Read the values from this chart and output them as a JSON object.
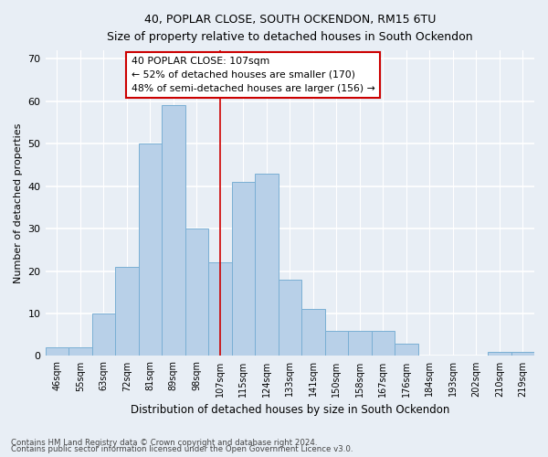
{
  "title1": "40, POPLAR CLOSE, SOUTH OCKENDON, RM15 6TU",
  "title2": "Size of property relative to detached houses in South Ockendon",
  "xlabel": "Distribution of detached houses by size in South Ockendon",
  "ylabel": "Number of detached properties",
  "categories": [
    "46sqm",
    "55sqm",
    "63sqm",
    "72sqm",
    "81sqm",
    "89sqm",
    "98sqm",
    "107sqm",
    "115sqm",
    "124sqm",
    "133sqm",
    "141sqm",
    "150sqm",
    "158sqm",
    "167sqm",
    "176sqm",
    "184sqm",
    "193sqm",
    "202sqm",
    "210sqm",
    "219sqm"
  ],
  "values": [
    2,
    2,
    10,
    21,
    50,
    59,
    30,
    22,
    41,
    43,
    18,
    11,
    6,
    6,
    6,
    3,
    0,
    0,
    0,
    1,
    1
  ],
  "bar_color": "#b8d0e8",
  "bar_edge_color": "#7aafd4",
  "vline_color": "#cc0000",
  "annotation_text": "40 POPLAR CLOSE: 107sqm\n← 52% of detached houses are smaller (170)\n48% of semi-detached houses are larger (156) →",
  "annotation_box_color": "#ffffff",
  "annotation_box_edge_color": "#cc0000",
  "ylim": [
    0,
    72
  ],
  "yticks": [
    0,
    10,
    20,
    30,
    40,
    50,
    60,
    70
  ],
  "background_color": "#e8eef5",
  "grid_color": "#ffffff",
  "footer1": "Contains HM Land Registry data © Crown copyright and database right 2024.",
  "footer2": "Contains public sector information licensed under the Open Government Licence v3.0."
}
